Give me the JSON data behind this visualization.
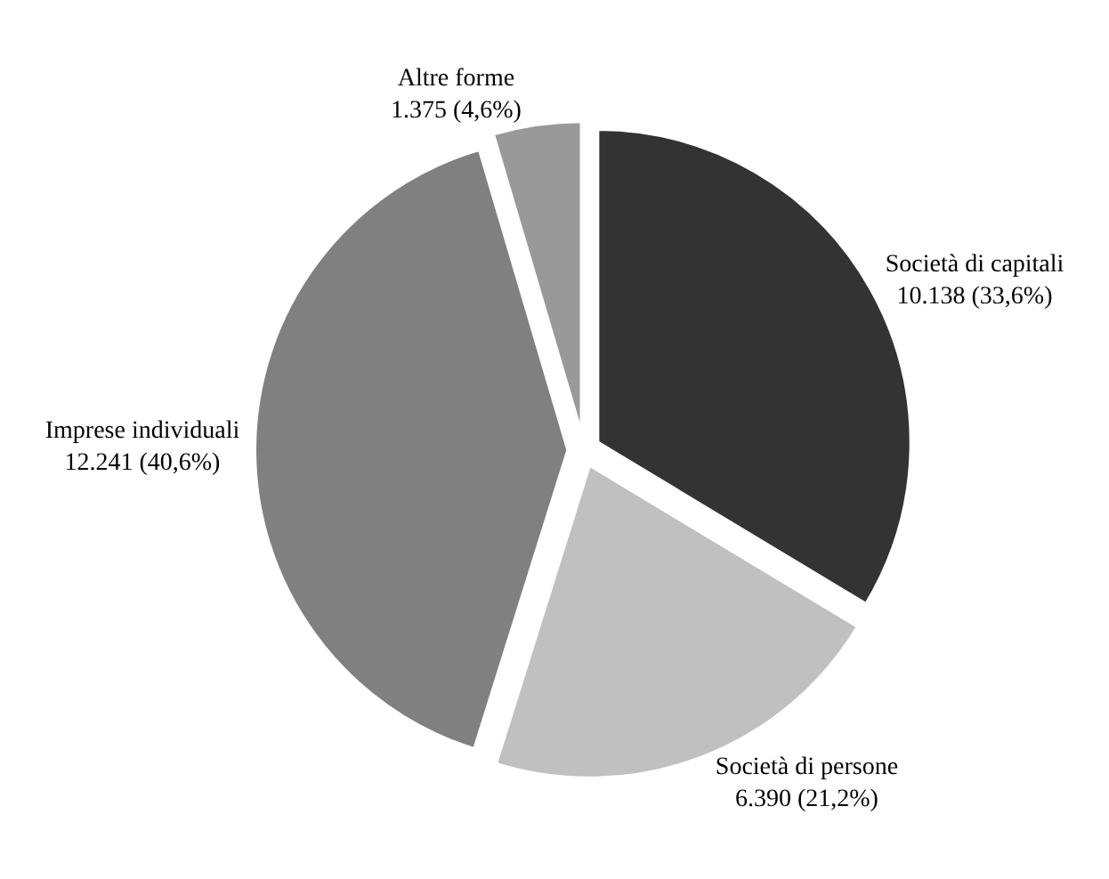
{
  "chart_data": {
    "type": "pie",
    "categories": [
      "Società di capitali",
      "Società di persone",
      "Imprese individuali",
      "Altre forme"
    ],
    "values": [
      10138,
      6390,
      12241,
      1375
    ],
    "value_labels": [
      "10.138 (33,6%)",
      "6.390 (21,2%)",
      "12.241 (40,6%)",
      "1.375 (4,6%)"
    ],
    "colors": [
      "#333333",
      "#c0c0c0",
      "#808080",
      "#999999"
    ],
    "legend": false
  }
}
